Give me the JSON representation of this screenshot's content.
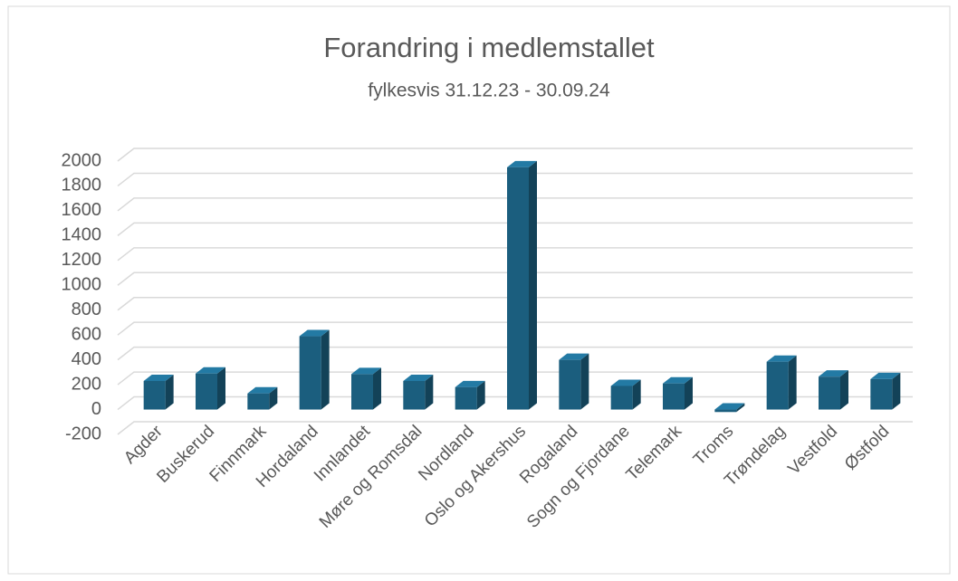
{
  "chart_data": {
    "type": "bar",
    "title": "Forandring i medlemstallet",
    "subtitle": "fylkesvis 31.12.23 - 30.09.24",
    "categories": [
      "Agder",
      "Buskerud",
      "Finnmark",
      "Hordaland",
      "Innlandet",
      "Møre og Romsdal",
      "Nordland",
      "Oslo og Akershus",
      "Rogaland",
      "Sogn og Fjordane",
      "Telemark",
      "Troms",
      "Trøndelag",
      "Vestfold",
      "Østfold"
    ],
    "values": [
      230,
      290,
      130,
      590,
      285,
      230,
      180,
      1950,
      400,
      190,
      210,
      -20,
      385,
      265,
      245
    ],
    "color": "#1b5e7e",
    "ylim": [
      -200,
      2000
    ],
    "yticks": [
      -200,
      0,
      200,
      400,
      600,
      800,
      1000,
      1200,
      1400,
      1600,
      1800,
      2000
    ],
    "grid": true
  }
}
